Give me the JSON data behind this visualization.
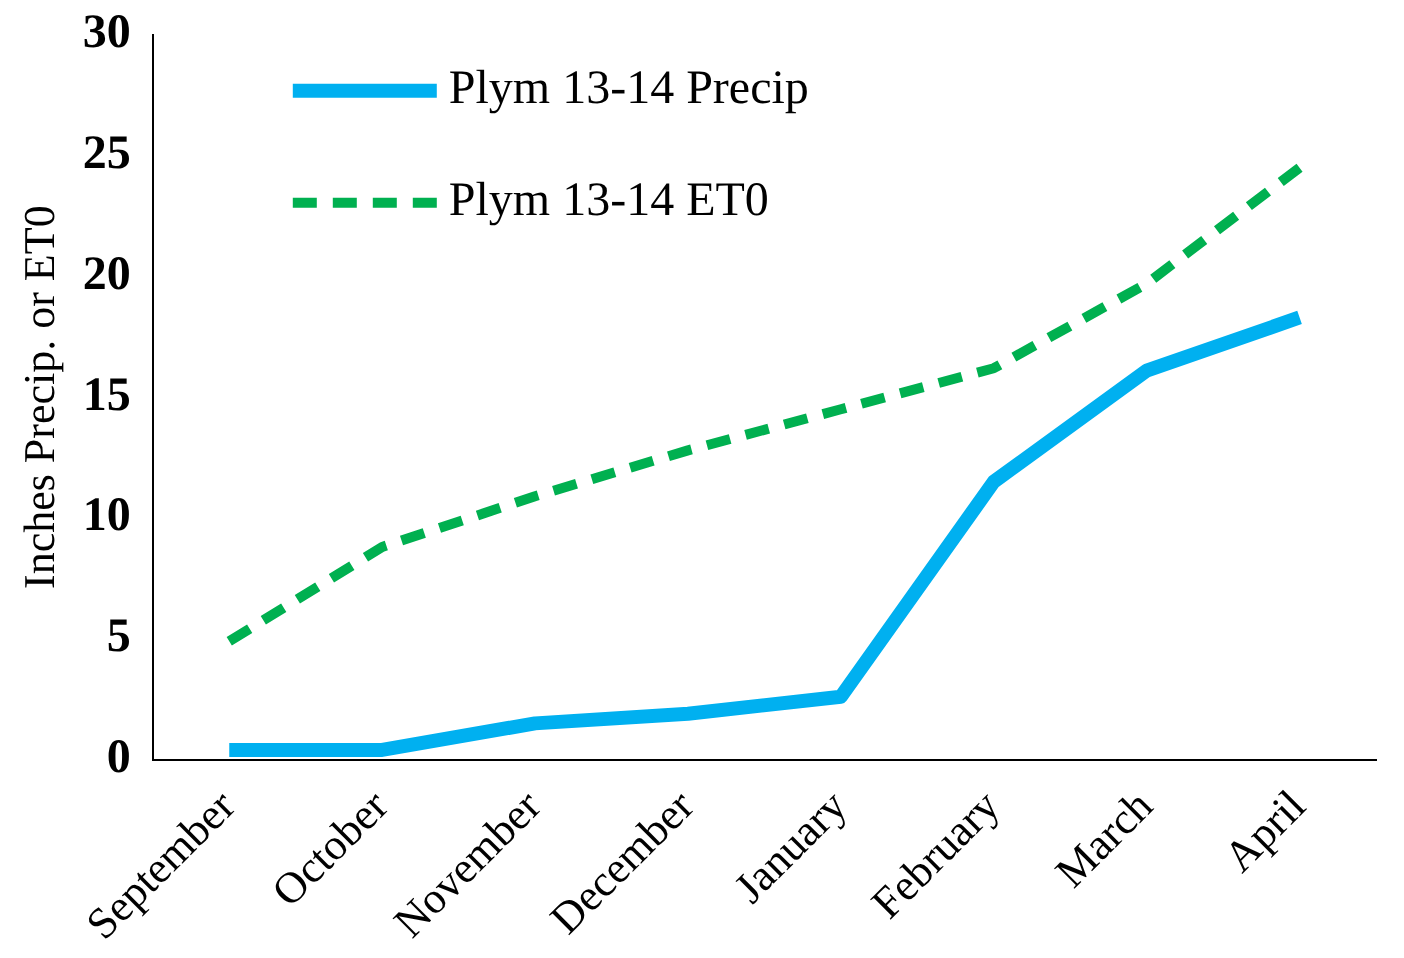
{
  "chart_data": {
    "type": "line",
    "ylabel": "Inches Precip. or ET0",
    "categories": [
      "September",
      "October",
      "November",
      "December",
      "January",
      "February",
      "March",
      "April"
    ],
    "series": [
      {
        "name": "Plym 13-14 Precip",
        "color": "#00b0f0",
        "line_style": "solid",
        "values": [
          0.4,
          0.4,
          1.5,
          1.9,
          2.6,
          11.5,
          16.1,
          18.3
        ]
      },
      {
        "name": "Plym 13-14 ET0",
        "color": "#00b050",
        "line_style": "dashed",
        "values": [
          4.9,
          8.8,
          10.9,
          12.8,
          14.5,
          16.2,
          19.7,
          24.5
        ]
      }
    ],
    "ylim": [
      0,
      30
    ],
    "yticks": [
      0,
      5,
      10,
      15,
      20,
      25,
      30
    ],
    "grid": false,
    "legend": "top left",
    "marker": "none"
  }
}
